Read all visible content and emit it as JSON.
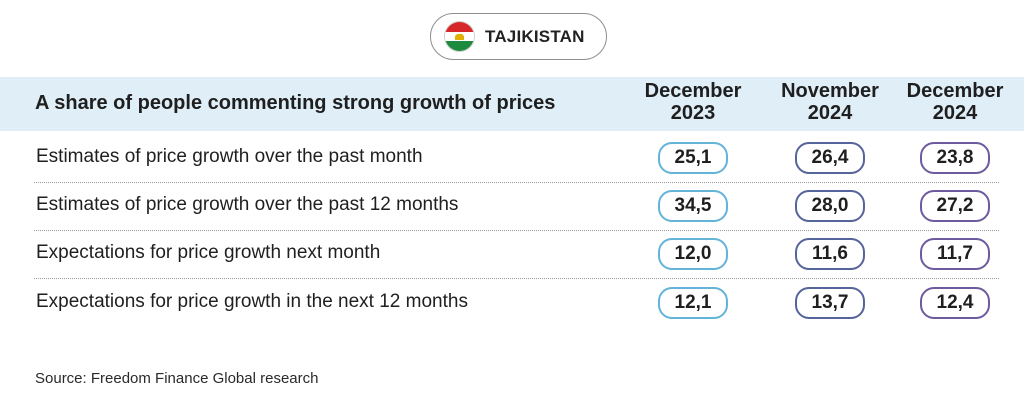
{
  "country": {
    "name": "TAJIKISTAN",
    "flag_colors": [
      "#d62828",
      "#ffffff",
      "#1e8a3d"
    ],
    "flag_emblem_color": "#e2b100"
  },
  "chart_data": {
    "type": "table",
    "title": "A share of people commenting strong growth of prices",
    "columns": [
      {
        "line1": "December",
        "line2": "2023"
      },
      {
        "line1": "November",
        "line2": "2024"
      },
      {
        "line1": "December",
        "line2": "2024"
      }
    ],
    "rows": [
      {
        "label": "Estimates of price growth over the past month",
        "values": [
          "25,1",
          "26,4",
          "23,8"
        ]
      },
      {
        "label": "Estimates of price growth over the past 12 months",
        "values": [
          "34,5",
          "28,0",
          "27,2"
        ]
      },
      {
        "label": "Expectations for price growth next month",
        "values": [
          "12,0",
          "11,6",
          "11,7"
        ]
      },
      {
        "label": "Expectations for price growth in the next 12 months",
        "values": [
          "12,1",
          "13,7",
          "12,4"
        ]
      }
    ],
    "column_colors": [
      "#63b4d8",
      "#56649c",
      "#6e5a9e"
    ],
    "header_background": "#dfeef7"
  },
  "source": "Source: Freedom Finance Global research"
}
